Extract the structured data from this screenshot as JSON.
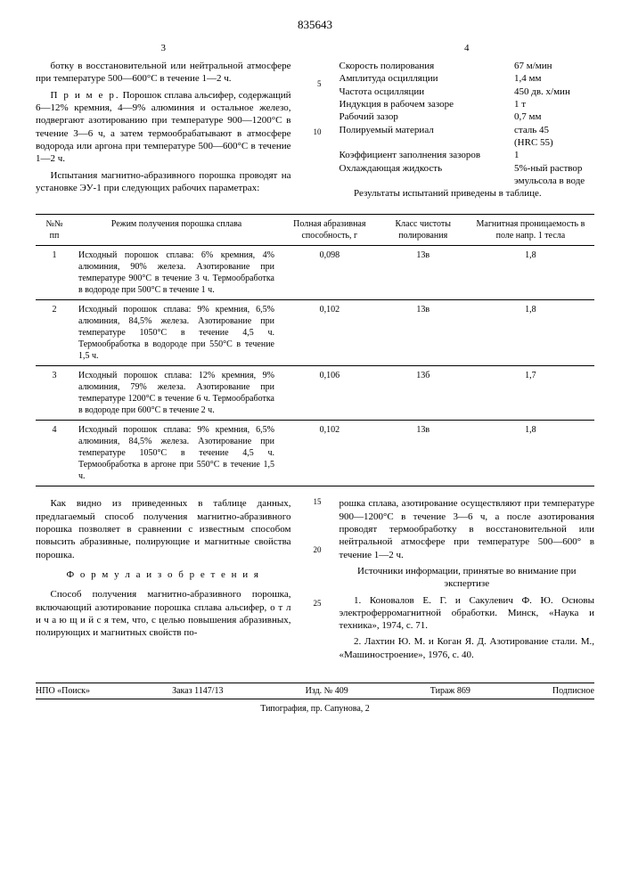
{
  "doc_number": "835643",
  "left_col_num": "3",
  "right_col_num": "4",
  "margins": {
    "m5": "5",
    "m10": "10",
    "m15": "15",
    "m20": "20",
    "m25": "25"
  },
  "left_text": {
    "p1": "ботку в восстановительной или нейтральной атмосфере при температуре 500—600°С в течение 1—2 ч.",
    "p2_lead": "П р и м е р.",
    "p2": " Порошок сплава альсифер, содержащий 6—12% кремния, 4—9% алюминия и остальное железо, подвергают азотированию при температуре 900—1200°С в течение 3—6 ч, а затем термообрабатывают в атмосфере водорода или аргона при температуре 500—600°С в течение 1—2 ч.",
    "p3": "Испытания магнитно-абразивного порошка проводят на установке ЭУ-1 при следующих рабочих параметрах:"
  },
  "params": [
    {
      "label": "Скорость полирования",
      "value": "67 м/мин"
    },
    {
      "label": "Амплитуда осцилляции",
      "value": "1,4 мм"
    },
    {
      "label": "Частота осцилляции",
      "value": "450 дв. х/мин"
    },
    {
      "label": "Индукция в рабочем зазоре",
      "value": "1 т"
    },
    {
      "label": "Рабочий зазор",
      "value": "0,7 мм"
    },
    {
      "label": "Полируемый материал",
      "value": "сталь 45"
    },
    {
      "label": "",
      "value": "(HRC 55)"
    },
    {
      "label": "Коэффициент заполнения зазоров",
      "value": "1"
    },
    {
      "label": "Охлаждающая жидкость",
      "value": "5%-ный раствор эмульсола в воде"
    }
  ],
  "results_intro": "Результаты испытаний приведены в таблице.",
  "table": {
    "headers": [
      "№№ пп",
      "Режим получения порошка сплава",
      "Полная абразивная способность, г",
      "Класс чистоты полирования",
      "Магнитная проницаемость в поле напр. 1 тесла"
    ],
    "rows": [
      {
        "n": "1",
        "desc": "Исходный порошок сплава: 6% кремния, 4% алюминия, 90% железа. Азотирование при температуре 900°С в течение 3 ч. Термообработка в водороде при 500°С в течение 1 ч.",
        "a": "0,098",
        "b": "13в",
        "c": "1,8"
      },
      {
        "n": "2",
        "desc": "Исходный порошок сплава: 9% кремния, 6,5% алюминия, 84,5% железа. Азотирование при температуре 1050°С в течение 4,5 ч. Термообработка в водороде при 550°С в течение 1,5 ч.",
        "a": "0,102",
        "b": "13в",
        "c": "1,8"
      },
      {
        "n": "3",
        "desc": "Исходный порошок сплава: 12% кремния, 9% алюминия, 79% железа. Азотирование при температуре 1200°С в течение 6 ч. Термообработка в водороде при 600°С в течение 2 ч.",
        "a": "0,106",
        "b": "13б",
        "c": "1,7"
      },
      {
        "n": "4",
        "desc": "Исходный порошок сплава: 9% кремния, 6,5% алюминия, 84,5% железа. Азотирование при температуре 1050°С в течение 4,5 ч. Термообработка в аргоне при 550°С в течение 1,5 ч.",
        "a": "0,102",
        "b": "13в",
        "c": "1,8"
      }
    ]
  },
  "bottom_left": {
    "p1": "Как видно из приведенных в таблице данных, предлагаемый способ получения магнитно-абразивного порошка позволяет в сравнении с известным способом повысить абразивные, полирующие и магнитные свойства порошка.",
    "formula_title": "Ф о р м у л а  и з о б р е т е н и я",
    "p2": "Способ получения магнитно-абразивного порошка, включающий азотирование порошка сплава альсифер, о т л и ч а ю щ и й с я тем, что, с целью повышения абразивных, полирующих и магнитных свойств по-"
  },
  "bottom_right": {
    "p1": "рошка сплава, азотирование осуществляют при температуре 900—1200°С в течение 3—6 ч, а после азотирования проводят термообработку в восстановительной или нейтральной атмосфере при температуре 500—600° в течение 1—2 ч.",
    "sources_title": "Источники информации, принятые во внимание при экспертизе",
    "ref1": "1. Коновалов Е. Г. и Сакулевич Ф. Ю. Основы электроферромагнитной обработки. Минск, «Наука и техника», 1974, с. 71.",
    "ref2": "2. Лахтин Ю. М. и Коган Я. Д. Азотирование стали. М., «Машиностроение», 1976, с. 40."
  },
  "footer": {
    "org": "НПО «Поиск»",
    "order": "Заказ 1147/13",
    "izd": "Изд. № 409",
    "tirazh": "Тираж 869",
    "pod": "Подписное",
    "typ": "Типография, пр. Сапунова, 2"
  }
}
